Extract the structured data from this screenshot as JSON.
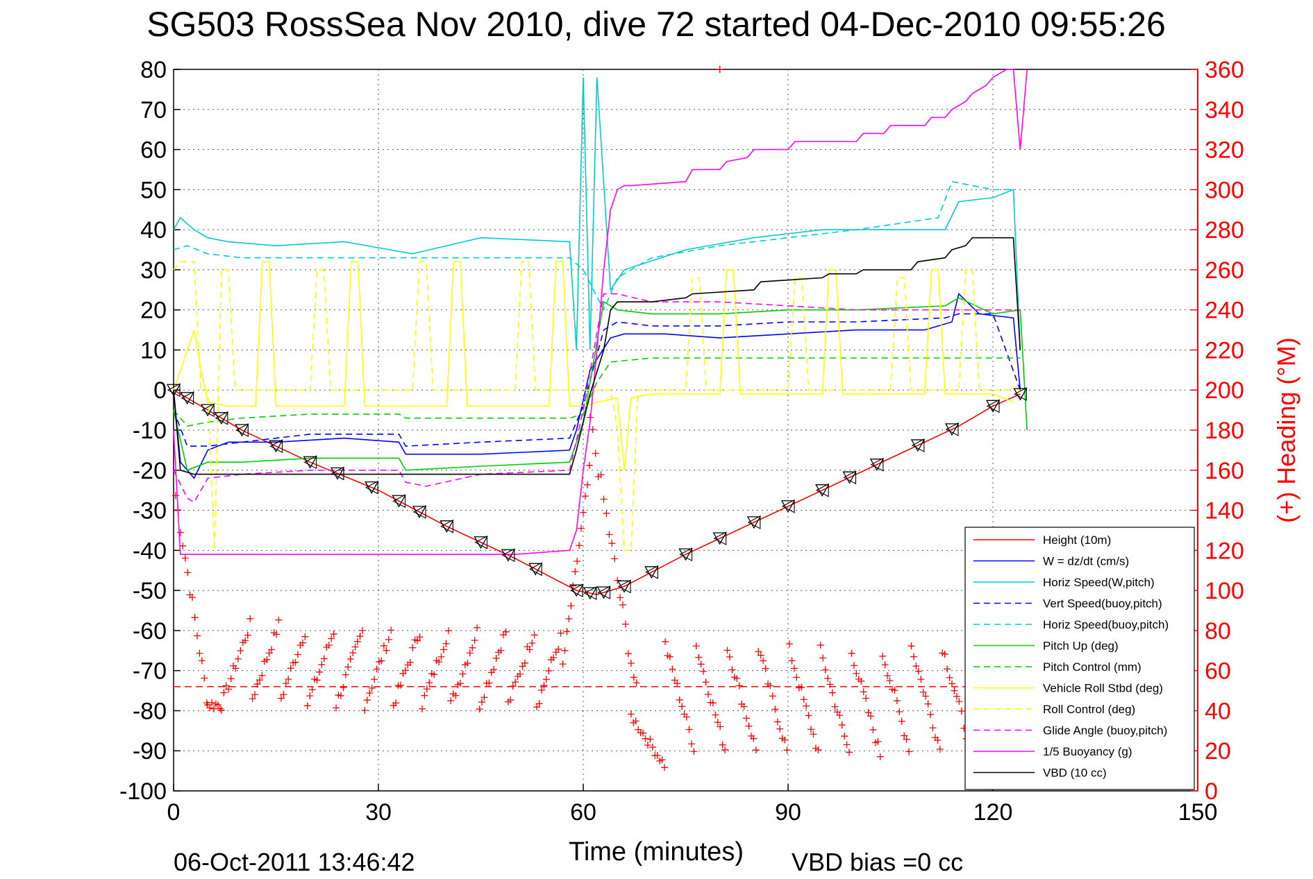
{
  "chart_data": {
    "type": "line",
    "title": "SG503 RossSea Nov 2010, dive 72 started 04-Dec-2010 09:55:26",
    "xlabel": "Time (minutes)",
    "ylabel_right": "(+) Heading (°M)",
    "xlim": [
      0,
      150
    ],
    "ylim": [
      -100,
      80
    ],
    "ylim_right": [
      0,
      360
    ],
    "x_ticks": [
      0,
      30,
      60,
      90,
      120,
      150
    ],
    "y_ticks": [
      80,
      70,
      60,
      50,
      40,
      30,
      20,
      10,
      0,
      -10,
      -20,
      -30,
      -40,
      -50,
      -60,
      -70,
      -80,
      -90,
      -100
    ],
    "y_right_ticks": [
      360,
      340,
      320,
      300,
      280,
      260,
      240,
      220,
      200,
      180,
      160,
      140,
      120,
      100,
      80,
      60,
      40,
      20,
      0
    ],
    "grid": true,
    "legend_position": "bottom-right",
    "footer_left": "06-Oct-2011 13:46:42",
    "footer_right": "VBD bias =0 cc",
    "heading_mean_right_axis": 52,
    "heading_mean_color": "#ff0000",
    "series": [
      {
        "name": "Height (10m)",
        "color": "#ff0000",
        "dash": false,
        "x": [
          0,
          5,
          10,
          20,
          30,
          40,
          50,
          59,
          62,
          66,
          75,
          85,
          95,
          105,
          115,
          120,
          124
        ],
        "y": [
          0,
          -5,
          -10,
          -18,
          -25,
          -34,
          -42,
          -50,
          -51,
          -49,
          -41,
          -33,
          -25,
          -17,
          -9,
          -4,
          -1
        ]
      },
      {
        "name": "W = dz/dt (cm/s)",
        "color": "#0000ff",
        "dash": false,
        "x": [
          0,
          1,
          3,
          5,
          8,
          15,
          25,
          33,
          34,
          45,
          58,
          59,
          61,
          64,
          66,
          72,
          80,
          90,
          100,
          110,
          114,
          115,
          118,
          123,
          124
        ],
        "y": [
          0,
          -18,
          -22,
          -15,
          -13,
          -13,
          -12,
          -13,
          -16,
          -16,
          -15,
          -10,
          5,
          13,
          14,
          14,
          13,
          14,
          15,
          15,
          17,
          24,
          19,
          18,
          0
        ]
      },
      {
        "name": "Horiz Speed(W,pitch)",
        "color": "#00cccc",
        "dash": false,
        "x": [
          0,
          1,
          3,
          5,
          8,
          15,
          25,
          35,
          45,
          58,
          59,
          60,
          61,
          62,
          64,
          66,
          75,
          85,
          95,
          105,
          113,
          115,
          120,
          123,
          124
        ],
        "y": [
          40,
          43,
          40,
          38,
          37,
          36,
          37,
          34,
          38,
          37,
          10,
          78,
          10,
          78,
          25,
          30,
          35,
          38,
          40,
          40,
          40,
          47,
          48,
          50,
          10
        ]
      },
      {
        "name": "Vert Speed(buoy,pitch)",
        "color": "#0000ff",
        "dash": true,
        "x": [
          0,
          2,
          5,
          10,
          20,
          33,
          34,
          45,
          58,
          60,
          63,
          65,
          70,
          80,
          90,
          100,
          113,
          115,
          120,
          124
        ],
        "y": [
          -5,
          -14,
          -14,
          -13,
          -11,
          -11,
          -14,
          -13,
          -12,
          -4,
          15,
          17,
          16,
          16,
          17,
          17,
          18,
          19,
          19,
          0
        ]
      },
      {
        "name": "Horiz Speed(buoy,pitch)",
        "color": "#00cccc",
        "dash": true,
        "x": [
          0,
          2,
          5,
          10,
          20,
          30,
          40,
          50,
          58,
          60,
          63,
          65,
          70,
          80,
          90,
          100,
          112,
          114,
          120,
          123
        ],
        "y": [
          35,
          36,
          34,
          33,
          33,
          33,
          33,
          33,
          33,
          30,
          20,
          28,
          33,
          36,
          38,
          40,
          43,
          52,
          50,
          50
        ]
      },
      {
        "name": "Pitch Up (deg)",
        "color": "#00cc00",
        "dash": false,
        "x": [
          0,
          2,
          5,
          10,
          20,
          33,
          34,
          45,
          58,
          60,
          63,
          65,
          70,
          80,
          90,
          100,
          113,
          115,
          120,
          124,
          125
        ],
        "y": [
          -5,
          -20,
          -18,
          -18,
          -17,
          -17,
          -20,
          -19,
          -18,
          -8,
          22,
          20,
          19,
          19,
          20,
          20,
          21,
          23,
          19,
          20,
          -10
        ]
      },
      {
        "name": "Pitch Control (mm)",
        "color": "#00cc00",
        "dash": true,
        "x": [
          0,
          2,
          5,
          10,
          20,
          33,
          34,
          45,
          58,
          60,
          62,
          64,
          70,
          80,
          90,
          100,
          110,
          120,
          124
        ],
        "y": [
          -5,
          -9,
          -8,
          -7,
          -6,
          -6,
          -7,
          -7,
          -7,
          -6,
          2,
          7,
          8,
          8,
          8,
          8,
          8,
          8,
          8
        ]
      },
      {
        "name": "Vehicle Roll Stbd (deg)",
        "color": "#ffff00",
        "dash": false,
        "x": [
          0,
          2,
          3,
          4,
          5,
          8,
          12,
          13,
          14,
          15,
          25,
          26,
          27,
          28,
          40,
          41,
          42,
          43,
          55,
          56,
          57,
          58,
          60,
          62,
          65,
          66,
          67,
          70,
          80,
          81,
          82,
          83,
          95,
          96,
          97,
          98,
          110,
          111,
          112,
          113,
          120,
          123
        ],
        "y": [
          0,
          10,
          15,
          5,
          -3,
          -4,
          -4,
          32,
          32,
          -4,
          -4,
          32,
          32,
          -4,
          -4,
          32,
          32,
          -4,
          -4,
          32,
          32,
          -4,
          -4,
          -3,
          -2,
          -20,
          -2,
          -1,
          -1,
          30,
          30,
          -1,
          -1,
          30,
          30,
          -1,
          -1,
          30,
          30,
          -1,
          -1,
          -3
        ]
      },
      {
        "name": "Roll Control (deg)",
        "color": "#ffff00",
        "dash": true,
        "x": [
          0,
          1,
          2,
          3,
          4,
          5,
          6,
          7,
          8,
          9,
          10,
          20,
          21,
          22,
          23,
          35,
          36,
          37,
          38,
          50,
          51,
          52,
          53,
          58,
          60,
          64,
          65,
          66,
          67,
          68,
          75,
          76,
          77,
          78,
          90,
          91,
          92,
          93,
          105,
          106,
          107,
          108,
          115,
          116,
          117,
          118,
          124
        ],
        "y": [
          30,
          32,
          32,
          32,
          0,
          0,
          -40,
          30,
          30,
          0,
          0,
          0,
          30,
          30,
          0,
          0,
          32,
          32,
          0,
          0,
          32,
          32,
          0,
          0,
          0,
          0,
          -10,
          -40,
          -40,
          0,
          0,
          28,
          28,
          0,
          0,
          28,
          28,
          0,
          0,
          28,
          28,
          0,
          0,
          30,
          30,
          0,
          0
        ]
      },
      {
        "name": "Glide Angle (buoy,pitch)",
        "color": "#ff00ff",
        "dash": true,
        "x": [
          0,
          2,
          3,
          5,
          10,
          20,
          33,
          34,
          37,
          45,
          58,
          60,
          63,
          65,
          70,
          80,
          90,
          100,
          110,
          120,
          124
        ],
        "y": [
          -20,
          -27,
          -28,
          -22,
          -21,
          -20,
          -20,
          -23,
          -24,
          -21,
          -20,
          -5,
          24,
          24,
          22,
          22,
          21,
          20,
          20,
          20,
          20
        ]
      },
      {
        "name": "1/5 Buoyancy (g)",
        "color": "#ff00ff",
        "dash": false,
        "x": [
          0,
          1,
          30,
          50,
          58,
          59,
          60,
          61,
          62,
          63,
          64,
          65,
          66,
          67,
          75,
          76,
          80,
          81,
          84,
          85,
          90,
          91,
          100,
          101,
          104,
          105,
          110,
          111,
          113,
          114,
          116,
          117,
          119,
          120,
          122,
          123,
          124,
          125
        ],
        "y": [
          -10,
          -41,
          -41,
          -41,
          -40,
          -35,
          -20,
          -8,
          10,
          30,
          45,
          50,
          51,
          51,
          52,
          55,
          55,
          57,
          58,
          60,
          60,
          62,
          62,
          64,
          64,
          66,
          66,
          68,
          68,
          70,
          72,
          74,
          76,
          78,
          80,
          80,
          60,
          80
        ]
      },
      {
        "name": "VBD (10 cc)",
        "color": "#000000",
        "dash": false,
        "x": [
          0,
          1,
          3,
          10,
          20,
          30,
          40,
          50,
          58,
          59,
          61,
          63,
          64,
          65,
          70,
          75,
          76,
          85,
          86,
          95,
          96,
          100,
          101,
          108,
          109,
          113,
          114,
          116,
          117,
          120,
          123,
          124
        ],
        "y": [
          0,
          -20,
          -21,
          -21,
          -21,
          -21,
          -21,
          -21,
          -21,
          -15,
          -1,
          10,
          20,
          22,
          22,
          23,
          24,
          25,
          27,
          28,
          29,
          29,
          30,
          30,
          32,
          33,
          35,
          36,
          38,
          38,
          38,
          10
        ]
      }
    ]
  }
}
